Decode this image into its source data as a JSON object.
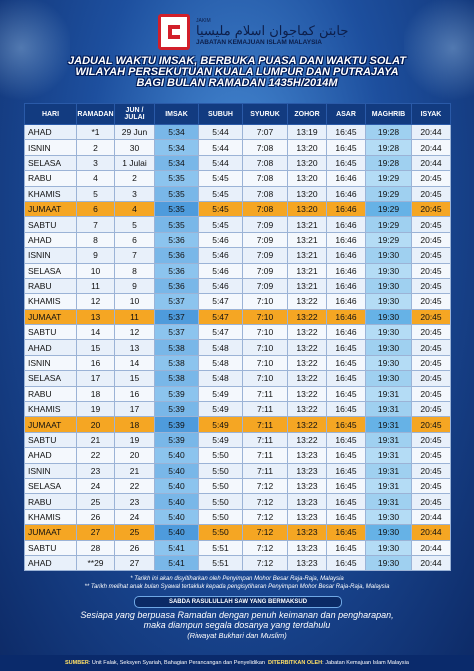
{
  "logo": {
    "arabic": "جابتن كماجوان اسلام مليسيا",
    "badge": "JAKIM",
    "org": "JABATAN KEMAJUAN ISLAM MALAYSIA"
  },
  "title": {
    "line1": "JADUAL WAKTU IMSAK, BERBUKA PUASA DAN WAKTU SOLAT",
    "line2": "WILAYAH PERSEKUTUAN KUALA LUMPUR DAN PUTRAJAYA",
    "line3": "BAGI BULAN RAMADAN 1435H/2014M"
  },
  "table": {
    "headers": [
      "HARI",
      "RAMADAN",
      "JUN / JULAI",
      "IMSAK",
      "SUBUH",
      "SYURUK",
      "ZOHOR",
      "ASAR",
      "MAGHRIB",
      "ISYAK"
    ],
    "rows": [
      [
        "AHAD",
        "*1",
        "29 Jun",
        "5:34",
        "5:44",
        "7:07",
        "13:19",
        "16:45",
        "19:28",
        "20:44"
      ],
      [
        "ISNIN",
        "2",
        "30",
        "5:34",
        "5:44",
        "7:08",
        "13:20",
        "16:45",
        "19:28",
        "20:44"
      ],
      [
        "SELASA",
        "3",
        "1 Julai",
        "5:34",
        "5:44",
        "7:08",
        "13:20",
        "16:45",
        "19:28",
        "20:44"
      ],
      [
        "RABU",
        "4",
        "2",
        "5:35",
        "5:45",
        "7:08",
        "13:20",
        "16:46",
        "19:29",
        "20:45"
      ],
      [
        "KHAMIS",
        "5",
        "3",
        "5:35",
        "5:45",
        "7:08",
        "13:20",
        "16:46",
        "19:29",
        "20:45"
      ],
      [
        "JUMAAT",
        "6",
        "4",
        "5:35",
        "5:45",
        "7:08",
        "13:20",
        "16:46",
        "19:29",
        "20:45"
      ],
      [
        "SABTU",
        "7",
        "5",
        "5:35",
        "5:45",
        "7:09",
        "13:21",
        "16:46",
        "19:29",
        "20:45"
      ],
      [
        "AHAD",
        "8",
        "6",
        "5:36",
        "5:46",
        "7:09",
        "13:21",
        "16:46",
        "19:29",
        "20:45"
      ],
      [
        "ISNIN",
        "9",
        "7",
        "5:36",
        "5:46",
        "7:09",
        "13:21",
        "16:46",
        "19:30",
        "20:45"
      ],
      [
        "SELASA",
        "10",
        "8",
        "5:36",
        "5:46",
        "7:09",
        "13:21",
        "16:46",
        "19:30",
        "20:45"
      ],
      [
        "RABU",
        "11",
        "9",
        "5:36",
        "5:46",
        "7:09",
        "13:21",
        "16:46",
        "19:30",
        "20:45"
      ],
      [
        "KHAMIS",
        "12",
        "10",
        "5:37",
        "5:47",
        "7:10",
        "13:22",
        "16:46",
        "19:30",
        "20:45"
      ],
      [
        "JUMAAT",
        "13",
        "11",
        "5:37",
        "5:47",
        "7:10",
        "13:22",
        "16:46",
        "19:30",
        "20:45"
      ],
      [
        "SABTU",
        "14",
        "12",
        "5:37",
        "5:47",
        "7:10",
        "13:22",
        "16:46",
        "19:30",
        "20:45"
      ],
      [
        "AHAD",
        "15",
        "13",
        "5:38",
        "5:48",
        "7:10",
        "13:22",
        "16:45",
        "19:30",
        "20:45"
      ],
      [
        "ISNIN",
        "16",
        "14",
        "5:38",
        "5:48",
        "7:10",
        "13:22",
        "16:45",
        "19:30",
        "20:45"
      ],
      [
        "SELASA",
        "17",
        "15",
        "5:38",
        "5:48",
        "7:10",
        "13:22",
        "16:45",
        "19:30",
        "20:45"
      ],
      [
        "RABU",
        "18",
        "16",
        "5:39",
        "5:49",
        "7:11",
        "13:22",
        "16:45",
        "19:31",
        "20:45"
      ],
      [
        "KHAMIS",
        "19",
        "17",
        "5:39",
        "5:49",
        "7:11",
        "13:22",
        "16:45",
        "19:31",
        "20:45"
      ],
      [
        "JUMAAT",
        "20",
        "18",
        "5:39",
        "5:49",
        "7:11",
        "13:22",
        "16:45",
        "19:31",
        "20:45"
      ],
      [
        "SABTU",
        "21",
        "19",
        "5:39",
        "5:49",
        "7:11",
        "13:22",
        "16:45",
        "19:31",
        "20:45"
      ],
      [
        "AHAD",
        "22",
        "20",
        "5:40",
        "5:50",
        "7:11",
        "13:23",
        "16:45",
        "19:31",
        "20:45"
      ],
      [
        "ISNIN",
        "23",
        "21",
        "5:40",
        "5:50",
        "7:11",
        "13:23",
        "16:45",
        "19:31",
        "20:45"
      ],
      [
        "SELASA",
        "24",
        "22",
        "5:40",
        "5:50",
        "7:12",
        "13:23",
        "16:45",
        "19:31",
        "20:45"
      ],
      [
        "RABU",
        "25",
        "23",
        "5:40",
        "5:50",
        "7:12",
        "13:23",
        "16:45",
        "19:31",
        "20:45"
      ],
      [
        "KHAMIS",
        "26",
        "24",
        "5:40",
        "5:50",
        "7:12",
        "13:23",
        "16:45",
        "19:30",
        "20:44"
      ],
      [
        "JUMAAT",
        "27",
        "25",
        "5:40",
        "5:50",
        "7:12",
        "13:23",
        "16:45",
        "19:30",
        "20:44"
      ],
      [
        "SABTU",
        "28",
        "26",
        "5:41",
        "5:51",
        "7:12",
        "13:23",
        "16:45",
        "19:30",
        "20:44"
      ],
      [
        "AHAD",
        "**29",
        "27",
        "5:41",
        "5:51",
        "7:12",
        "13:23",
        "16:45",
        "19:30",
        "20:44"
      ]
    ]
  },
  "notes": {
    "note1": "* Tarikh ini akan disyitiharkan oleh Penyimpan Mohor Besar Raja-Raja, Malaysia",
    "note2": "** Tarikh melihat anak bulan Syawal tertakluk kepada pengisytiharan Penyimpan Mohor Besar Raja-Raja, Malaysia"
  },
  "hadith": {
    "title": "SABDA RASULULLAH SAW YANG BERMAKSUD",
    "line1": "Sesiapa yang berpuasa Ramadan dengan penuh keimanan dan pengharapan,",
    "line2": "maka diampun segala dosanya yang terdahulu",
    "source": "(Riwayat Bukhari dan Muslim)"
  },
  "footer": {
    "source_label": "SUMBER",
    "source_text": ": Unit Falak, Seksyen Syariah, Bahagian Perancangan dan Penyelidikan",
    "publisher_label": "DITERBITKAN OLEH",
    "publisher_text": ": Jabatan Kemajuan Islam Malaysia"
  },
  "colors": {
    "header_bg": "#123b80",
    "imsak": "#79b7e8",
    "maghrib": "#9fd0f0",
    "jumaat": "#f5a623"
  }
}
